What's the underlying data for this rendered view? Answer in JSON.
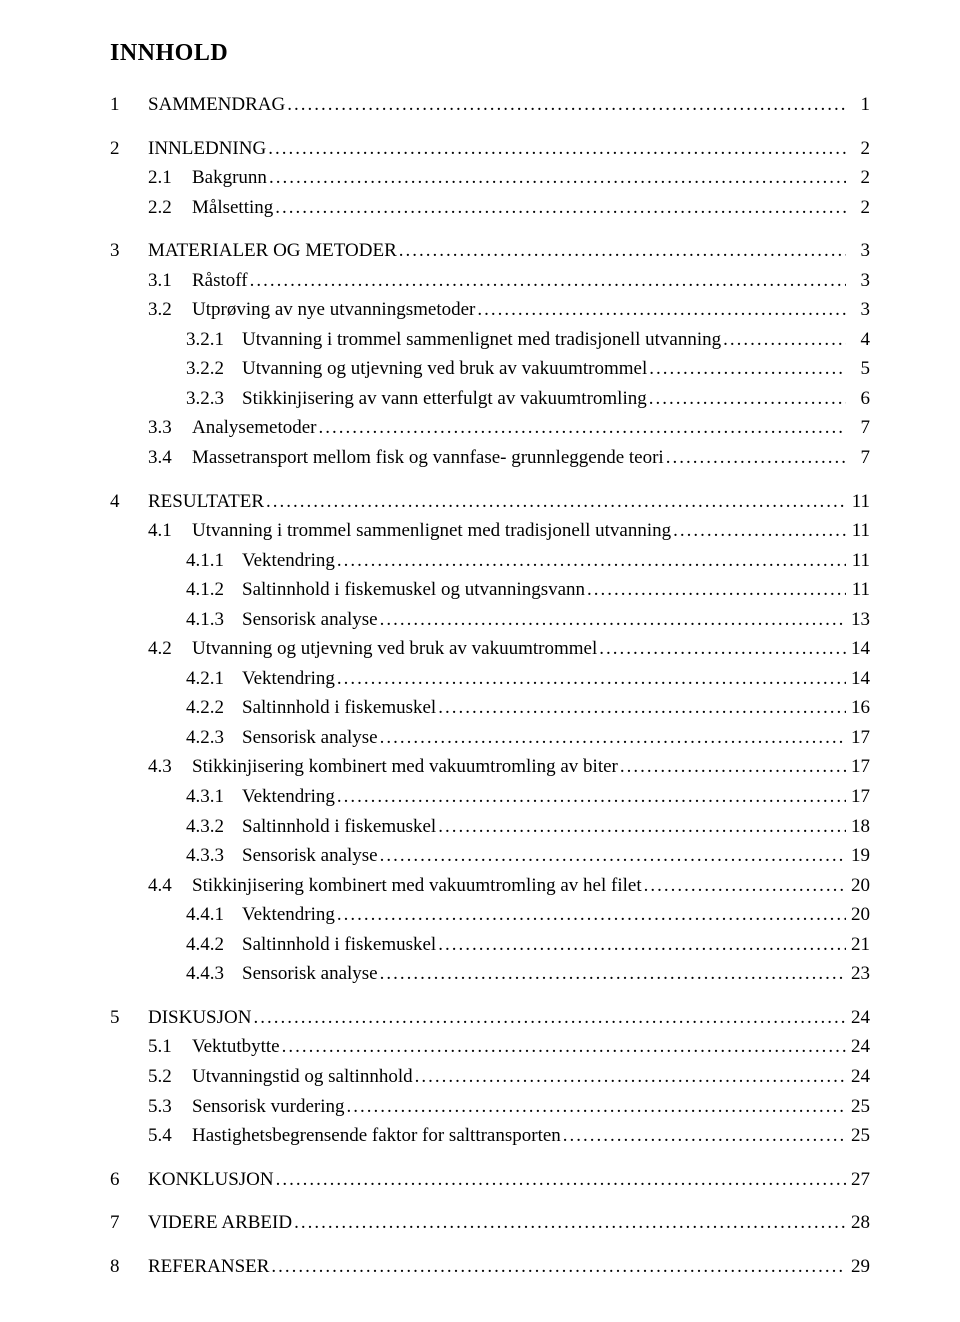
{
  "title": "INNHOLD",
  "items": [
    {
      "level": 0,
      "num": "1",
      "label": "SAMMENDRAG",
      "page": "1"
    },
    {
      "level": 0,
      "num": "2",
      "label": "INNLEDNING",
      "page": "2"
    },
    {
      "level": 1,
      "num": "2.1",
      "label": "Bakgrunn",
      "page": "2"
    },
    {
      "level": 1,
      "num": "2.2",
      "label": "Målsetting",
      "page": "2"
    },
    {
      "level": 0,
      "num": "3",
      "label": "MATERIALER OG METODER",
      "page": "3"
    },
    {
      "level": 1,
      "num": "3.1",
      "label": "Råstoff",
      "page": "3"
    },
    {
      "level": 1,
      "num": "3.2",
      "label": "Utprøving av nye utvanningsmetoder",
      "page": "3"
    },
    {
      "level": 2,
      "num": "3.2.1",
      "label": "Utvanning i trommel sammenlignet med tradisjonell utvanning",
      "page": "4"
    },
    {
      "level": 2,
      "num": "3.2.2",
      "label": "Utvanning og utjevning ved bruk av vakuumtrommel",
      "page": "5"
    },
    {
      "level": 2,
      "num": "3.2.3",
      "label": "Stikkinjisering av vann etterfulgt av vakuumtromling",
      "page": "6"
    },
    {
      "level": 1,
      "num": "3.3",
      "label": "Analysemetoder",
      "page": "7"
    },
    {
      "level": 1,
      "num": "3.4",
      "label": "Massetransport mellom fisk og vannfase- grunnleggende teori",
      "page": "7"
    },
    {
      "level": 0,
      "num": "4",
      "label": "RESULTATER",
      "page": "11"
    },
    {
      "level": 1,
      "num": "4.1",
      "label": "Utvanning i trommel sammenlignet med tradisjonell utvanning",
      "page": "11"
    },
    {
      "level": 2,
      "num": "4.1.1",
      "label": "Vektendring",
      "page": "11"
    },
    {
      "level": 2,
      "num": "4.1.2",
      "label": "Saltinnhold i fiskemuskel og utvanningsvann",
      "page": "11"
    },
    {
      "level": 2,
      "num": "4.1.3",
      "label": "Sensorisk analyse",
      "page": "13"
    },
    {
      "level": 1,
      "num": "4.2",
      "label": "Utvanning og utjevning ved bruk av vakuumtrommel",
      "page": "14"
    },
    {
      "level": 2,
      "num": "4.2.1",
      "label": "Vektendring",
      "page": "14"
    },
    {
      "level": 2,
      "num": "4.2.2",
      "label": "Saltinnhold i fiskemuskel",
      "page": "16"
    },
    {
      "level": 2,
      "num": "4.2.3",
      "label": "Sensorisk analyse",
      "page": "17"
    },
    {
      "level": 1,
      "num": "4.3",
      "label": "Stikkinjisering kombinert med vakuumtromling av biter",
      "page": "17"
    },
    {
      "level": 2,
      "num": "4.3.1",
      "label": "Vektendring",
      "page": "17"
    },
    {
      "level": 2,
      "num": "4.3.2",
      "label": "Saltinnhold i fiskemuskel",
      "page": "18"
    },
    {
      "level": 2,
      "num": "4.3.3",
      "label": "Sensorisk analyse",
      "page": "19"
    },
    {
      "level": 1,
      "num": "4.4",
      "label": "Stikkinjisering kombinert med vakuumtromling av hel filet",
      "page": "20"
    },
    {
      "level": 2,
      "num": "4.4.1",
      "label": "Vektendring",
      "page": "20"
    },
    {
      "level": 2,
      "num": "4.4.2",
      "label": "Saltinnhold i fiskemuskel",
      "page": "21"
    },
    {
      "level": 2,
      "num": "4.4.3",
      "label": "Sensorisk analyse",
      "page": "23"
    },
    {
      "level": 0,
      "num": "5",
      "label": "DISKUSJON",
      "page": "24"
    },
    {
      "level": 1,
      "num": "5.1",
      "label": "Vektutbytte",
      "page": "24"
    },
    {
      "level": 1,
      "num": "5.2",
      "label": "Utvanningstid og saltinnhold",
      "page": "24"
    },
    {
      "level": 1,
      "num": "5.3",
      "label": "Sensorisk vurdering",
      "page": "25"
    },
    {
      "level": 1,
      "num": "5.4",
      "label": "Hastighetsbegrensende faktor for salttransporten",
      "page": "25"
    },
    {
      "level": 0,
      "num": "6",
      "label": "KONKLUSJON",
      "page": "27"
    },
    {
      "level": 0,
      "num": "7",
      "label": "VIDERE ARBEID",
      "page": "28"
    },
    {
      "level": 0,
      "num": "8",
      "label": "REFERANSER",
      "page": "29"
    }
  ]
}
